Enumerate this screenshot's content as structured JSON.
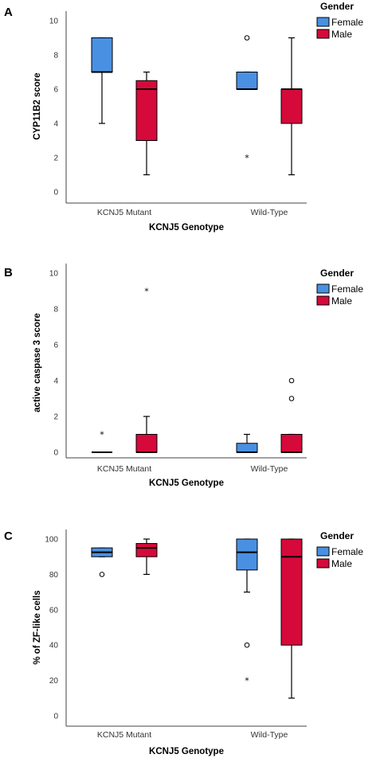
{
  "colors": {
    "Female": "#4a90e2",
    "Male": "#d6093b"
  },
  "legend": {
    "title": "Gender",
    "items": [
      "Female",
      "Male"
    ]
  },
  "chart_data": [
    {
      "type": "box",
      "panel": "A",
      "xlabel": "KCNJ5 Genotype",
      "ylabel": "CYP11B2 score",
      "categories": [
        "KCNJ5 Mutant",
        "Wild-Type"
      ],
      "ylim": [
        0,
        10
      ],
      "yticks": [
        0,
        2,
        4,
        6,
        8,
        10
      ],
      "series": [
        {
          "name": "Female",
          "boxes": [
            {
              "category": "KCNJ5 Mutant",
              "min": 4,
              "q1": 7,
              "median": 7,
              "q3": 9,
              "max": 9,
              "outliers": []
            },
            {
              "category": "Wild-Type",
              "min": 6,
              "q1": 6,
              "median": 6,
              "q3": 7,
              "max": 7,
              "outliers": [
                {
                  "value": 9,
                  "marker": "circle"
                },
                {
                  "value": 2,
                  "marker": "star"
                }
              ]
            }
          ]
        },
        {
          "name": "Male",
          "boxes": [
            {
              "category": "KCNJ5 Mutant",
              "min": 1,
              "q1": 3,
              "median": 6,
              "q3": 6.5,
              "max": 7,
              "outliers": []
            },
            {
              "category": "Wild-Type",
              "min": 1,
              "q1": 4,
              "median": 6,
              "q3": 6,
              "max": 9,
              "outliers": []
            }
          ]
        }
      ]
    },
    {
      "type": "box",
      "panel": "B",
      "xlabel": "KCNJ5 Genotype",
      "ylabel": "active caspase 3 score",
      "categories": [
        "KCNJ5 Mutant",
        "Wild-Type"
      ],
      "ylim": [
        0,
        10
      ],
      "yticks": [
        0,
        2,
        4,
        6,
        8,
        10
      ],
      "series": [
        {
          "name": "Female",
          "boxes": [
            {
              "category": "KCNJ5 Mutant",
              "min": 0,
              "q1": 0,
              "median": 0,
              "q3": 0,
              "max": 0,
              "outliers": [
                {
                  "value": 1,
                  "marker": "star"
                }
              ]
            },
            {
              "category": "Wild-Type",
              "min": 0,
              "q1": 0,
              "median": 0,
              "q3": 0.5,
              "max": 1,
              "outliers": []
            }
          ]
        },
        {
          "name": "Male",
          "boxes": [
            {
              "category": "KCNJ5 Mutant",
              "min": 0,
              "q1": 0,
              "median": 0,
              "q3": 1,
              "max": 2,
              "outliers": [
                {
                  "value": 9,
                  "marker": "star"
                }
              ]
            },
            {
              "category": "Wild-Type",
              "min": 0,
              "q1": 0,
              "median": 0,
              "q3": 1,
              "max": 1,
              "outliers": [
                {
                  "value": 4,
                  "marker": "circle"
                },
                {
                  "value": 3,
                  "marker": "circle"
                }
              ]
            }
          ]
        }
      ]
    },
    {
      "type": "box",
      "panel": "C",
      "xlabel": "KCNJ5 Genotype",
      "ylabel": "% of ZF-like cells",
      "categories": [
        "KCNJ5 Mutant",
        "Wild-Type"
      ],
      "ylim": [
        0,
        100
      ],
      "yticks": [
        0,
        20,
        40,
        60,
        80,
        100
      ],
      "series": [
        {
          "name": "Female",
          "boxes": [
            {
              "category": "KCNJ5 Mutant",
              "min": 90,
              "q1": 90,
              "median": 92.5,
              "q3": 95,
              "max": 95,
              "outliers": [
                {
                  "value": 80,
                  "marker": "circle"
                }
              ]
            },
            {
              "category": "Wild-Type",
              "min": 70,
              "q1": 82.5,
              "median": 92.5,
              "q3": 100,
              "max": 100,
              "outliers": [
                {
                  "value": 40,
                  "marker": "circle"
                },
                {
                  "value": 20,
                  "marker": "star"
                }
              ]
            }
          ]
        },
        {
          "name": "Male",
          "boxes": [
            {
              "category": "KCNJ5 Mutant",
              "min": 80,
              "q1": 90,
              "median": 95,
              "q3": 97.5,
              "max": 100,
              "outliers": []
            },
            {
              "category": "Wild-Type",
              "min": 10,
              "q1": 40,
              "median": 90,
              "q3": 100,
              "max": 100,
              "outliers": []
            }
          ]
        }
      ]
    }
  ]
}
